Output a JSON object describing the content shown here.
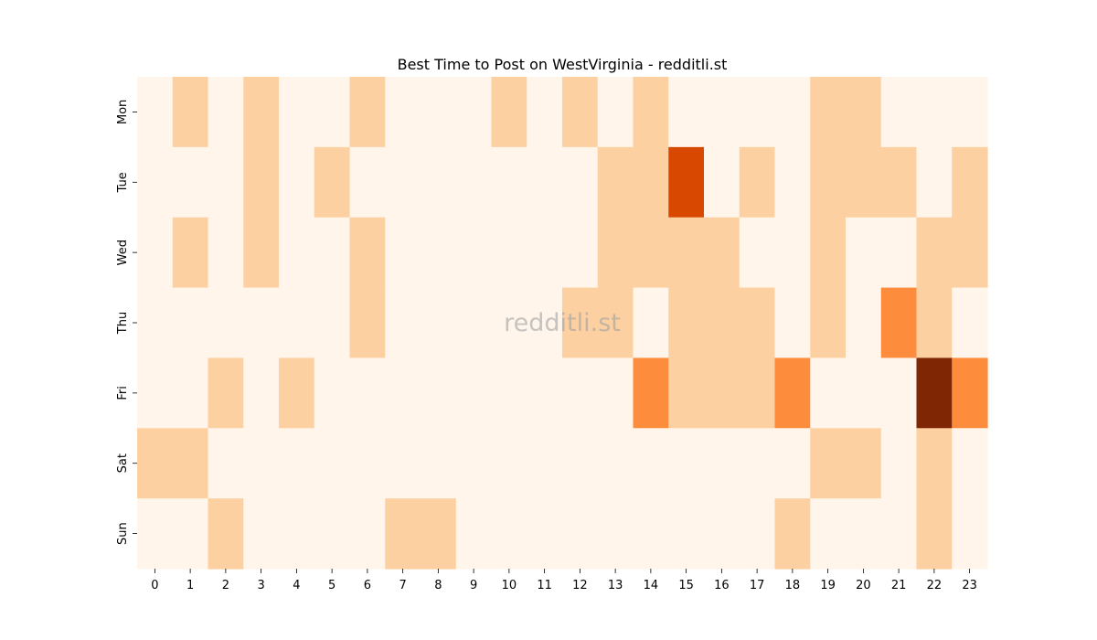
{
  "chart_data": {
    "type": "heatmap",
    "title": "Best Time to Post on WestVirginia - redditli.st",
    "watermark": "redditli.st",
    "xlabel": "",
    "ylabel": "",
    "x": [
      "0",
      "1",
      "2",
      "3",
      "4",
      "5",
      "6",
      "7",
      "8",
      "9",
      "10",
      "11",
      "12",
      "13",
      "14",
      "15",
      "16",
      "17",
      "18",
      "19",
      "20",
      "21",
      "22",
      "23"
    ],
    "y": [
      "Mon",
      "Tue",
      "Wed",
      "Thu",
      "Fri",
      "Sat",
      "Sun"
    ],
    "values": [
      [
        0,
        1,
        0,
        1,
        0,
        0,
        1,
        0,
        0,
        0,
        1,
        0,
        1,
        0,
        1,
        0,
        0,
        0,
        0,
        1,
        1,
        0,
        0,
        0
      ],
      [
        0,
        0,
        0,
        1,
        0,
        1,
        0,
        0,
        0,
        0,
        0,
        0,
        0,
        1,
        1,
        3,
        0,
        1,
        0,
        1,
        1,
        1,
        0,
        1
      ],
      [
        0,
        1,
        0,
        1,
        0,
        0,
        1,
        0,
        0,
        0,
        0,
        0,
        0,
        1,
        1,
        1,
        1,
        0,
        0,
        1,
        0,
        0,
        1,
        1
      ],
      [
        0,
        0,
        0,
        0,
        0,
        0,
        1,
        0,
        0,
        0,
        0,
        0,
        1,
        1,
        0,
        1,
        1,
        1,
        0,
        1,
        0,
        2,
        1,
        0
      ],
      [
        0,
        0,
        1,
        0,
        1,
        0,
        0,
        0,
        0,
        0,
        0,
        0,
        0,
        0,
        2,
        1,
        1,
        1,
        2,
        0,
        0,
        0,
        4,
        2
      ],
      [
        1,
        1,
        0,
        0,
        0,
        0,
        0,
        0,
        0,
        0,
        0,
        0,
        0,
        0,
        0,
        0,
        0,
        0,
        0,
        1,
        1,
        0,
        1,
        0
      ],
      [
        0,
        0,
        1,
        0,
        0,
        0,
        0,
        1,
        1,
        0,
        0,
        0,
        0,
        0,
        0,
        0,
        0,
        0,
        1,
        0,
        0,
        0,
        1,
        0
      ]
    ],
    "color_scale": "Oranges",
    "colors": [
      "#fff5eb",
      "#fdd0a2",
      "#fd8d3c",
      "#d94801",
      "#7f2704"
    ],
    "colorbar": false,
    "grid": false
  }
}
